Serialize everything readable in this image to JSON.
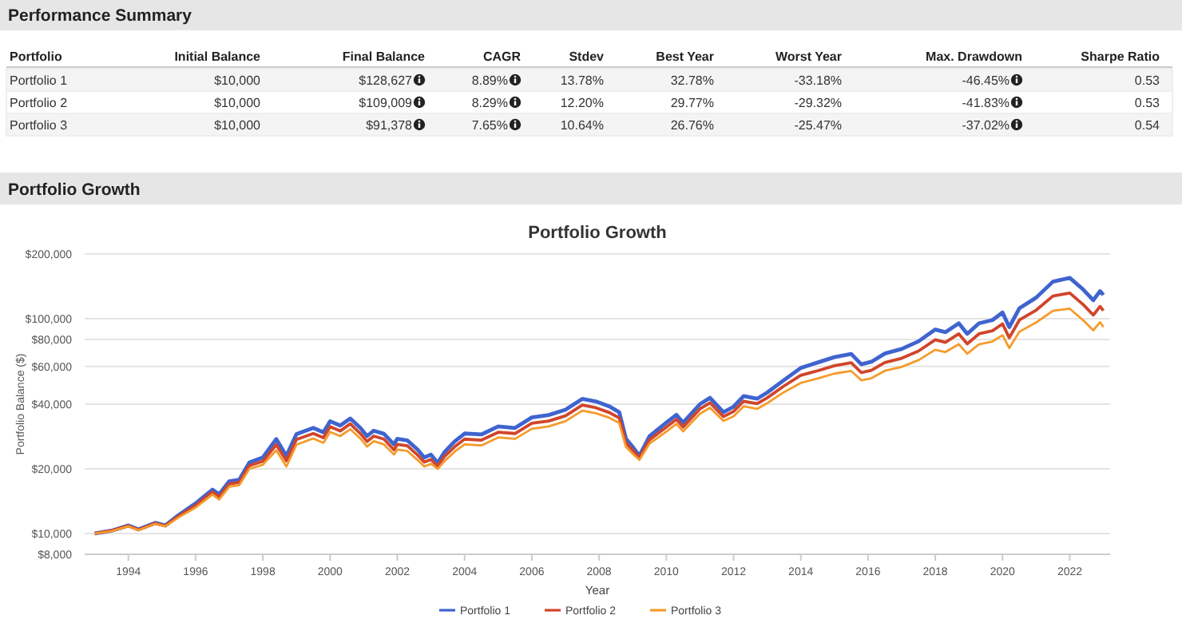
{
  "chart_data": [
    {
      "type": "other",
      "title": "Performance Summary",
      "categories": [
        "Portfolio",
        "Initial Balance",
        "Final Balance",
        "CAGR",
        "Stdev",
        "Best Year",
        "Worst Year",
        "Max. Drawdown",
        "Sharpe Ratio"
      ],
      "y_categories": [
        "Portfolio 1",
        "Portfolio 2",
        "Portfolio 3"
      ],
      "cell_labels": [
        [
          "$10,000",
          "$128,627",
          "8.89%",
          "13.78%",
          "32.78%",
          "-33.18%",
          "-46.45%",
          "0.53"
        ],
        [
          "$10,000",
          "$109,009",
          "8.29%",
          "12.20%",
          "29.77%",
          "-29.32%",
          "-41.83%",
          "0.53"
        ],
        [
          "$10,000",
          "$91,378",
          "7.65%",
          "10.64%",
          "26.76%",
          "-25.47%",
          "-37.02%",
          "0.54"
        ]
      ]
    },
    {
      "type": "line",
      "title": "Portfolio Growth",
      "subtitle": "Portfolio Growth",
      "xlabel": "Year",
      "ylabel": "Portfolio Balance ($)",
      "log": "y",
      "grid": "y",
      "legend": "bottom",
      "marker": "none",
      "line_style": "solid",
      "x": [
        1993.0,
        1993.5,
        1994.0,
        1994.3,
        1994.8,
        1995.1,
        1995.5,
        1996.0,
        1996.5,
        1996.7,
        1997.0,
        1997.3,
        1997.6,
        1998.0,
        1998.4,
        1998.7,
        1999.0,
        1999.5,
        1999.8,
        2000.0,
        2000.3,
        2000.6,
        2000.9,
        2001.1,
        2001.3,
        2001.6,
        2001.9,
        2002.0,
        2002.3,
        2002.6,
        2002.8,
        2003.0,
        2003.2,
        2003.4,
        2003.7,
        2004.0,
        2004.5,
        2005.0,
        2005.5,
        2006.0,
        2006.5,
        2007.0,
        2007.5,
        2007.9,
        2008.3,
        2008.6,
        2008.8,
        2009.0,
        2009.2,
        2009.5,
        2010.0,
        2010.3,
        2010.5,
        2011.0,
        2011.3,
        2011.7,
        2012.0,
        2012.3,
        2012.7,
        2013.0,
        2013.5,
        2014.0,
        2014.5,
        2015.0,
        2015.5,
        2015.8,
        2016.1,
        2016.5,
        2017.0,
        2017.5,
        2018.0,
        2018.3,
        2018.7,
        2018.95,
        2019.3,
        2019.7,
        2020.0,
        2020.2,
        2020.5,
        2021.0,
        2021.5,
        2022.0,
        2022.4,
        2022.7,
        2022.9,
        2023.0
      ],
      "xlim": [
        1992.7,
        2023.2
      ],
      "xticks": [
        1994,
        1996,
        1998,
        2000,
        2002,
        2004,
        2006,
        2008,
        2010,
        2012,
        2014,
        2016,
        2018,
        2020,
        2022
      ],
      "ylim": [
        8000,
        200000
      ],
      "yticks": [
        {
          "value": 8000,
          "label": "$8,000"
        },
        {
          "value": 10000,
          "label": "$10,000"
        },
        {
          "value": 20000,
          "label": "$20,000"
        },
        {
          "value": 40000,
          "label": "$40,000"
        },
        {
          "value": 60000,
          "label": "$60,000"
        },
        {
          "value": 80000,
          "label": "$80,000"
        },
        {
          "value": 100000,
          "label": "$100,000"
        },
        {
          "value": 200000,
          "label": "$200,000"
        }
      ],
      "series": [
        {
          "name": "Portfolio 1",
          "color": "#3f64cf",
          "values": [
            10000,
            10300,
            10900,
            10450,
            11200,
            10900,
            12200,
            13800,
            16000,
            15200,
            17500,
            17800,
            21400,
            22600,
            27500,
            23000,
            29000,
            31000,
            29600,
            33300,
            31800,
            34300,
            31000,
            28400,
            30100,
            29100,
            26000,
            27600,
            27100,
            24600,
            22600,
            23300,
            21300,
            23900,
            26800,
            29200,
            28900,
            31500,
            31000,
            34700,
            35600,
            37700,
            42300,
            41200,
            39100,
            36700,
            27600,
            25300,
            23000,
            28400,
            32800,
            35700,
            32800,
            40000,
            42800,
            36700,
            38900,
            43600,
            42400,
            45300,
            51800,
            59000,
            62500,
            66200,
            68500,
            61300,
            63000,
            68800,
            72300,
            78400,
            89000,
            86500,
            95200,
            85000,
            95200,
            98500,
            106800,
            91300,
            111700,
            125300,
            148700,
            154800,
            136600,
            121800,
            134400,
            129000
          ]
        },
        {
          "name": "Portfolio 2",
          "color": "#d1452b",
          "values": [
            10000,
            10300,
            10850,
            10400,
            11150,
            10850,
            12050,
            13500,
            15600,
            14800,
            17000,
            17300,
            20700,
            21700,
            25900,
            21800,
            27400,
            29200,
            27900,
            31400,
            30000,
            32400,
            29200,
            26800,
            28400,
            27500,
            24500,
            26000,
            25600,
            23200,
            21500,
            22100,
            20600,
            22800,
            25300,
            27500,
            27200,
            29600,
            29200,
            32600,
            33400,
            35300,
            39600,
            38500,
            36600,
            34500,
            26400,
            24400,
            22500,
            27300,
            31300,
            34000,
            31300,
            38000,
            40600,
            35000,
            37000,
            41300,
            40200,
            42800,
            48600,
            54500,
            57200,
            60400,
            62400,
            56100,
            57500,
            62500,
            65400,
            70700,
            79800,
            77600,
            85000,
            76300,
            85000,
            87800,
            94600,
            81500,
            98500,
            109600,
            127500,
            131600,
            116200,
            103900,
            114000,
            109000
          ]
        },
        {
          "name": "Portfolio 3",
          "color": "#f59b2b",
          "values": [
            10000,
            10250,
            10800,
            10350,
            11100,
            10800,
            11900,
            13200,
            15200,
            14400,
            16500,
            16800,
            20000,
            20900,
            24400,
            20500,
            25900,
            27700,
            26400,
            29700,
            28400,
            30600,
            27700,
            25400,
            26900,
            26000,
            23300,
            24600,
            24200,
            22000,
            20500,
            21100,
            20000,
            21700,
            24000,
            26000,
            25700,
            28000,
            27600,
            30700,
            31500,
            33300,
            37300,
            36300,
            34600,
            32700,
            25300,
            23500,
            22000,
            26200,
            29800,
            32400,
            29900,
            36100,
            38500,
            33400,
            35100,
            39100,
            38000,
            40400,
            45500,
            50200,
            52700,
            55500,
            57100,
            51700,
            52800,
            57200,
            59600,
            64100,
            71700,
            69900,
            76000,
            68700,
            76000,
            78300,
            83800,
            73000,
            86900,
            96000,
            108800,
            111300,
            98300,
            88300,
            96300,
            91400
          ]
        }
      ]
    }
  ]
}
